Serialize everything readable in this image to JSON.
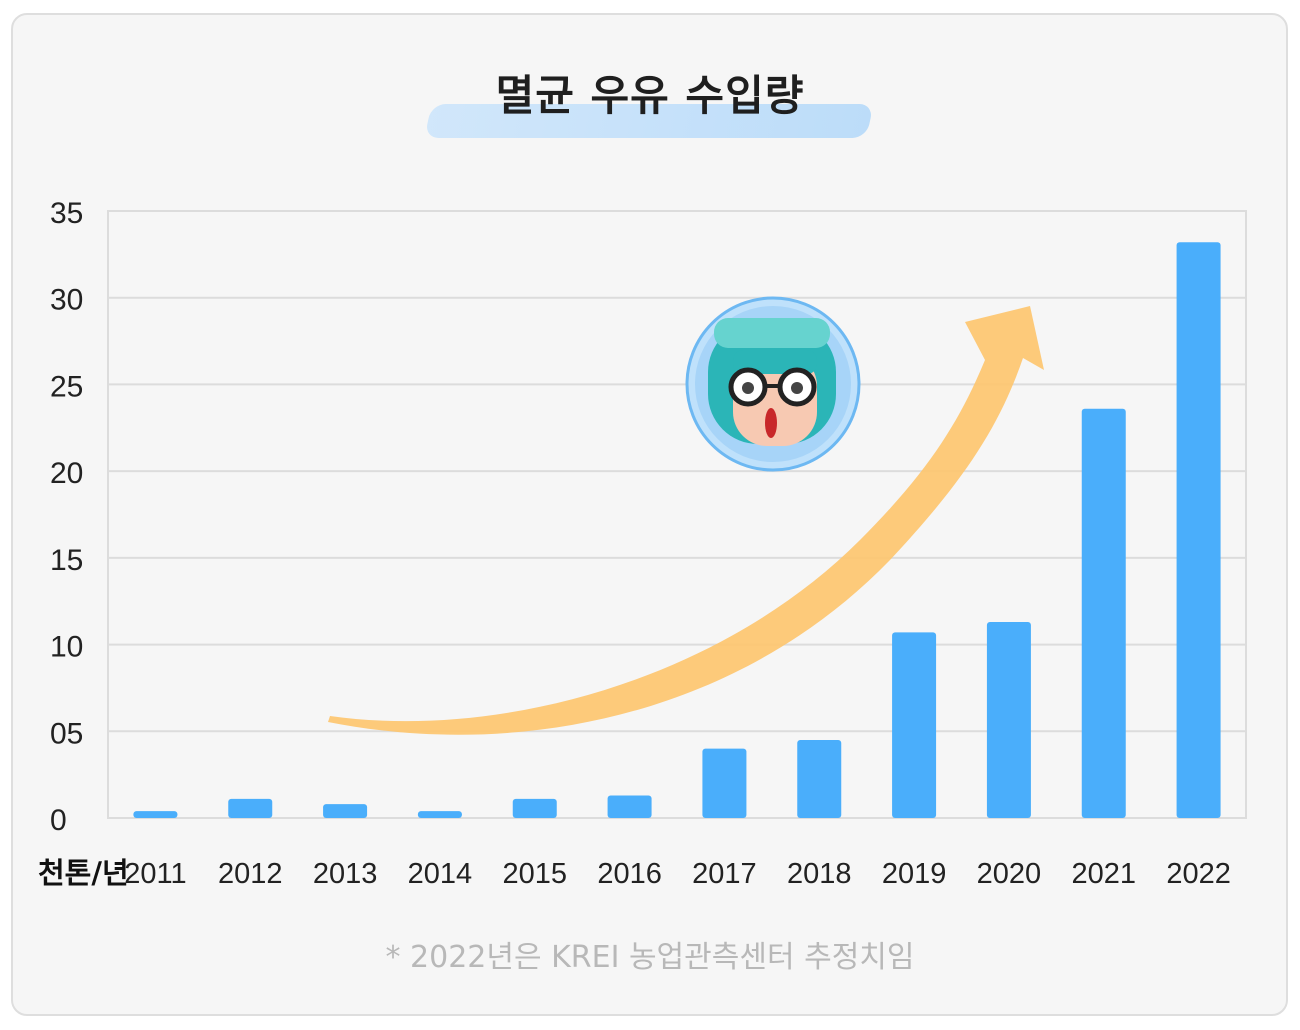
{
  "title": "멸균 우유 수입량",
  "unit_label": "천톤/년",
  "footnote": "* 2022년은 KREI 농업관측센터 추정치임",
  "colors": {
    "bar": "#4aaefb",
    "arrow": "#fdc56f",
    "grid": "#dcdcdc",
    "highlight": "#c4e1fa"
  },
  "chart_data": {
    "type": "bar",
    "categories": [
      "2011",
      "2012",
      "2013",
      "2014",
      "2015",
      "2016",
      "2017",
      "2018",
      "2019",
      "2020",
      "2021",
      "2022"
    ],
    "values": [
      0.4,
      1.1,
      0.8,
      0.4,
      1.1,
      1.3,
      4.0,
      4.5,
      10.7,
      11.3,
      23.6,
      33.2
    ],
    "y_tick_labels": [
      "0",
      "05",
      "10",
      "15",
      "20",
      "25",
      "30",
      "35"
    ],
    "ylim": [
      0,
      35
    ],
    "grid": true,
    "annotation": "upward-trend-arrow",
    "decoration": "character-face-icon"
  }
}
